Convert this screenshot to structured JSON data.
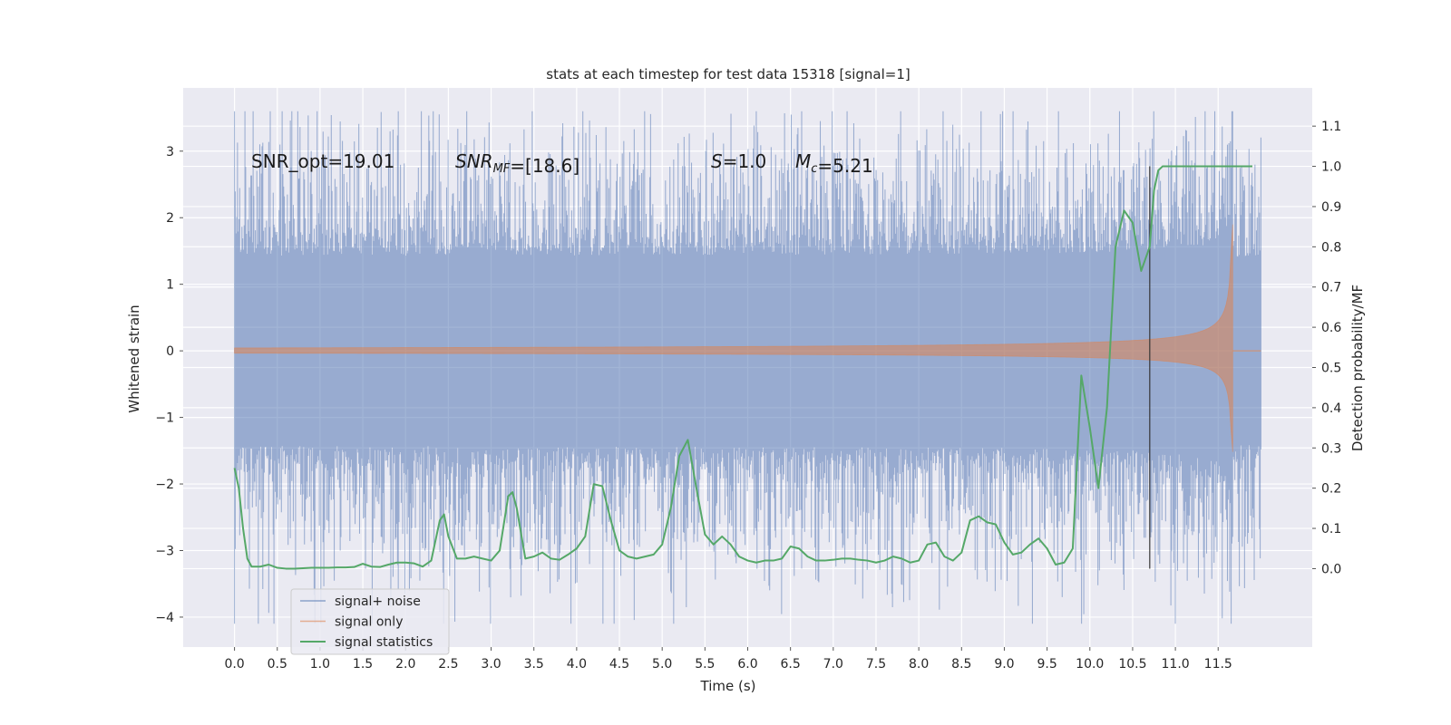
{
  "chart_data": {
    "type": "line",
    "title": "stats at each timestep for test data 15318 [signal=1]",
    "xlabel": "Time (s)",
    "ylabel_left": "Whitened strain",
    "ylabel_right": "Detection probability/MF",
    "xlim": [
      -0.6,
      12.6
    ],
    "ylim_left": [
      -4.45,
      3.95
    ],
    "ylim_right": [
      -0.195,
      1.195
    ],
    "x_ticks": [
      "0.0",
      "0.5",
      "1.0",
      "1.5",
      "2.0",
      "2.5",
      "3.0",
      "3.5",
      "4.0",
      "4.5",
      "5.0",
      "5.5",
      "6.0",
      "6.5",
      "7.0",
      "7.5",
      "8.0",
      "8.5",
      "9.0",
      "9.5",
      "10.0",
      "10.5",
      "11.0",
      "11.5"
    ],
    "y_ticks_left": [
      "−4",
      "−3",
      "−2",
      "−1",
      "0",
      "1",
      "2",
      "3"
    ],
    "y_ticks_right": [
      "0.0",
      "0.1",
      "0.2",
      "0.3",
      "0.4",
      "0.5",
      "0.6",
      "0.7",
      "0.8",
      "0.9",
      "1.0",
      "1.1"
    ],
    "grid": true,
    "legend_position": "lower-left",
    "annotations": [
      {
        "parts": [
          {
            "t": "SNR_opt=19.01",
            "italic": false
          }
        ]
      },
      {
        "parts": [
          {
            "t": "SNR",
            "italic": true
          },
          {
            "t": "MF",
            "italic": true,
            "sub": true
          },
          {
            "t": "=[18.6]",
            "italic": false
          }
        ]
      },
      {
        "parts": [
          {
            "t": "S",
            "italic": true
          },
          {
            "t": "=1.0",
            "italic": false
          }
        ]
      },
      {
        "parts": [
          {
            "t": "M",
            "italic": true
          },
          {
            "t": "c",
            "italic": true,
            "sub": true
          },
          {
            "t": "=5.21",
            "italic": false
          }
        ]
      }
    ],
    "vline_x": 10.7,
    "series": [
      {
        "name": "signal+ noise",
        "color": "#4c72b0",
        "axis": "left",
        "kind": "noise",
        "x_range": [
          0.0,
          12.0
        ],
        "approx_range": [
          -4.1,
          3.6
        ]
      },
      {
        "name": "signal only",
        "color": "#dd8452",
        "axis": "left",
        "kind": "chirp",
        "x_range": [
          0.0,
          12.0
        ],
        "merger_time": 11.67,
        "peak_amplitude": 1.9
      },
      {
        "name": "signal statistics",
        "color": "#55a868",
        "axis": "right",
        "kind": "line",
        "x": [
          0.0,
          0.05,
          0.1,
          0.15,
          0.2,
          0.3,
          0.4,
          0.5,
          0.6,
          0.7,
          0.8,
          0.9,
          1.0,
          1.1,
          1.2,
          1.3,
          1.4,
          1.5,
          1.6,
          1.7,
          1.8,
          1.9,
          2.0,
          2.1,
          2.2,
          2.3,
          2.4,
          2.45,
          2.5,
          2.6,
          2.7,
          2.8,
          2.9,
          3.0,
          3.1,
          3.2,
          3.25,
          3.3,
          3.4,
          3.5,
          3.6,
          3.7,
          3.8,
          3.9,
          4.0,
          4.1,
          4.2,
          4.3,
          4.4,
          4.5,
          4.6,
          4.7,
          4.8,
          4.9,
          5.0,
          5.1,
          5.2,
          5.3,
          5.4,
          5.5,
          5.6,
          5.7,
          5.8,
          5.9,
          6.0,
          6.1,
          6.2,
          6.3,
          6.4,
          6.5,
          6.6,
          6.7,
          6.8,
          6.9,
          7.0,
          7.1,
          7.2,
          7.3,
          7.4,
          7.5,
          7.6,
          7.7,
          7.8,
          7.9,
          8.0,
          8.1,
          8.2,
          8.3,
          8.4,
          8.5,
          8.6,
          8.7,
          8.8,
          8.9,
          9.0,
          9.1,
          9.2,
          9.3,
          9.4,
          9.5,
          9.6,
          9.7,
          9.8,
          9.9,
          10.0,
          10.1,
          10.2,
          10.3,
          10.4,
          10.5,
          10.6,
          10.7,
          10.75,
          10.8,
          10.85,
          10.9,
          11.0,
          11.1,
          11.2,
          11.3,
          11.5,
          11.7,
          11.9
        ],
        "y": [
          0.25,
          0.2,
          0.1,
          0.025,
          0.005,
          0.005,
          0.01,
          0.002,
          0.0,
          0.0,
          0.001,
          0.002,
          0.002,
          0.002,
          0.003,
          0.003,
          0.004,
          0.012,
          0.005,
          0.004,
          0.01,
          0.015,
          0.015,
          0.013,
          0.005,
          0.02,
          0.12,
          0.135,
          0.08,
          0.025,
          0.025,
          0.03,
          0.025,
          0.02,
          0.045,
          0.18,
          0.19,
          0.15,
          0.025,
          0.03,
          0.04,
          0.025,
          0.022,
          0.035,
          0.05,
          0.08,
          0.21,
          0.205,
          0.12,
          0.045,
          0.03,
          0.025,
          0.03,
          0.035,
          0.06,
          0.15,
          0.28,
          0.32,
          0.2,
          0.085,
          0.06,
          0.08,
          0.06,
          0.03,
          0.02,
          0.015,
          0.02,
          0.02,
          0.025,
          0.055,
          0.05,
          0.03,
          0.02,
          0.02,
          0.022,
          0.025,
          0.025,
          0.022,
          0.02,
          0.015,
          0.02,
          0.03,
          0.025,
          0.015,
          0.02,
          0.06,
          0.065,
          0.03,
          0.02,
          0.04,
          0.12,
          0.13,
          0.115,
          0.11,
          0.065,
          0.035,
          0.04,
          0.06,
          0.075,
          0.05,
          0.01,
          0.015,
          0.05,
          0.48,
          0.35,
          0.2,
          0.4,
          0.8,
          0.89,
          0.86,
          0.74,
          0.8,
          0.94,
          0.99,
          1.0,
          1.0,
          1.0,
          1.0,
          1.0,
          1.0,
          1.0,
          1.0,
          1.0
        ]
      }
    ]
  }
}
